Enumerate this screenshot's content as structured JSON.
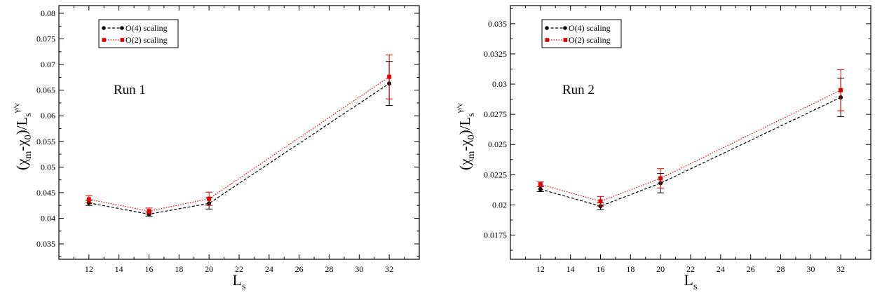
{
  "chart_data": [
    {
      "type": "line",
      "annotation": "Run 1",
      "xlabel": {
        "main": "L",
        "sub": "s"
      },
      "ylabel": {
        "open": "(χ",
        "sub1": "m",
        "mid": "-χ",
        "sub2": "0",
        "close": ")/L",
        "sub3": "s",
        "sup": "γ/ν"
      },
      "xlim": [
        10,
        34
      ],
      "ylim": [
        0.032,
        0.0815
      ],
      "xticks": [
        12,
        14,
        16,
        18,
        20,
        22,
        24,
        26,
        28,
        30,
        32
      ],
      "xtick_labels": [
        "12",
        "14",
        "16",
        "18",
        "20",
        "22",
        "24",
        "26",
        "28",
        "30",
        "32"
      ],
      "yticks": [
        0.035,
        0.04,
        0.045,
        0.05,
        0.055,
        0.06,
        0.065,
        0.07,
        0.075,
        0.08
      ],
      "ytick_labels": [
        "0.035",
        "0.04",
        "0.045",
        "0.05",
        "0.055",
        "0.06",
        "0.065",
        "0.07",
        "0.075",
        "0.08"
      ],
      "legend": {
        "position": "top-left"
      },
      "series": [
        {
          "name": "O(4) scaling",
          "color": "#000000",
          "marker": "circle",
          "line": "dashed",
          "x": [
            12,
            16,
            20,
            32
          ],
          "y": [
            0.043,
            0.0408,
            0.0429,
            0.0663
          ],
          "err": [
            0.0005,
            0.0004,
            0.0011,
            0.0043
          ]
        },
        {
          "name": "O(2) scaling",
          "color": "#e00000",
          "marker": "square",
          "line": "dotted",
          "x": [
            12,
            16,
            20,
            32
          ],
          "y": [
            0.0437,
            0.0414,
            0.0438,
            0.0676
          ],
          "err": [
            0.0007,
            0.0006,
            0.0013,
            0.0043
          ]
        }
      ]
    },
    {
      "type": "line",
      "annotation": "Run 2",
      "xlabel": {
        "main": "L",
        "sub": "s"
      },
      "ylabel": {
        "open": "(χ",
        "sub1": "m",
        "mid": "-χ",
        "sub2": "0",
        "close": ")/L",
        "sub3": "s",
        "sup": "γ/ν"
      },
      "xlim": [
        10,
        34
      ],
      "ylim": [
        0.0155,
        0.0365
      ],
      "xticks": [
        12,
        14,
        16,
        18,
        20,
        22,
        24,
        26,
        28,
        30,
        32
      ],
      "xtick_labels": [
        "12",
        "14",
        "16",
        "18",
        "20",
        "22",
        "24",
        "26",
        "28",
        "30",
        "32"
      ],
      "yticks": [
        0.0175,
        0.02,
        0.0225,
        0.025,
        0.0275,
        0.03,
        0.0325,
        0.035
      ],
      "ytick_labels": [
        "0.0175",
        "0.02",
        "0.0225",
        "0.025",
        "0.0275",
        "0.03",
        "0.0325",
        "0.035"
      ],
      "legend": {
        "position": "top-left"
      },
      "series": [
        {
          "name": "O(4) scaling",
          "color": "#000000",
          "marker": "circle",
          "line": "dashed",
          "x": [
            12,
            16,
            20,
            32
          ],
          "y": [
            0.0213,
            0.0199,
            0.0218,
            0.0289
          ],
          "err": [
            0.0002,
            0.0003,
            0.0008,
            0.0016
          ]
        },
        {
          "name": "O(2) scaling",
          "color": "#e00000",
          "marker": "square",
          "line": "dotted",
          "x": [
            12,
            16,
            20,
            32
          ],
          "y": [
            0.0217,
            0.0203,
            0.0222,
            0.0295
          ],
          "err": [
            0.0002,
            0.0004,
            0.0008,
            0.0017
          ]
        }
      ]
    }
  ]
}
